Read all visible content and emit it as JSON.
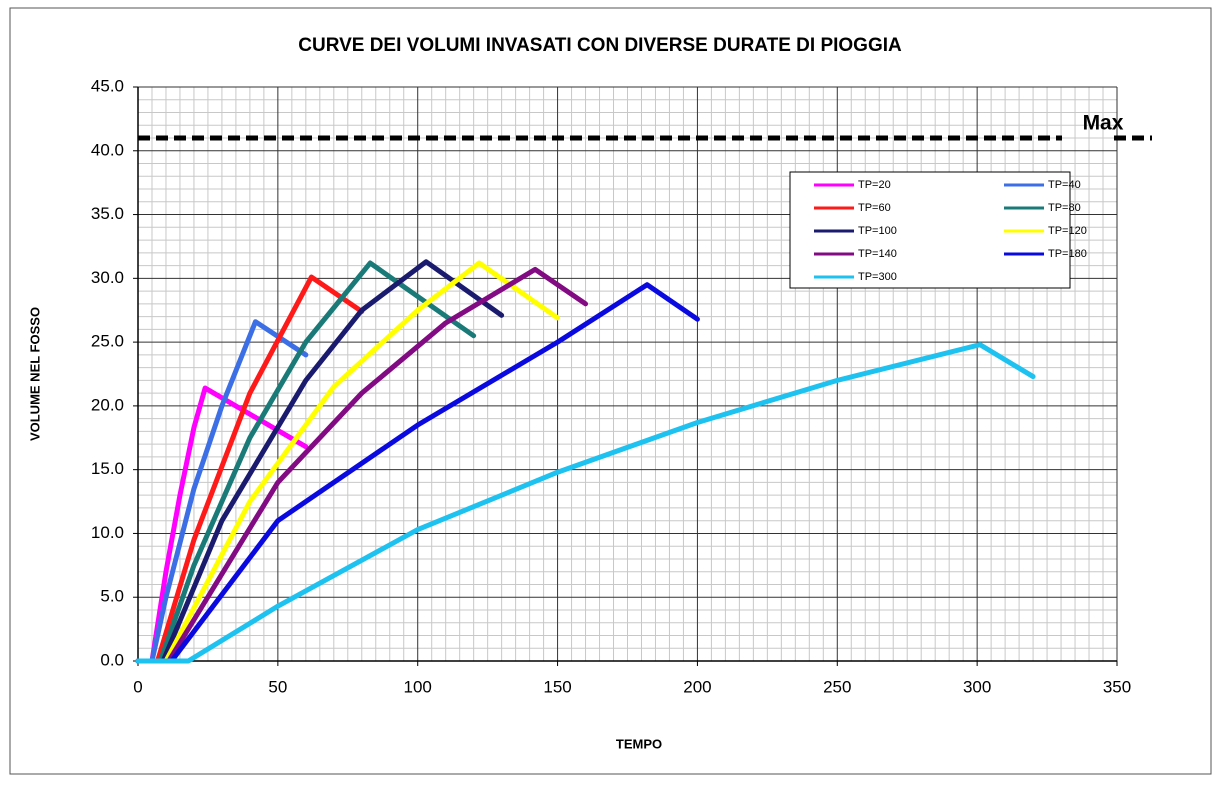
{
  "chart_data": {
    "type": "line",
    "title": "CURVE DEI VOLUMI INVASATI CON DIVERSE DURATE DI PIOGGIA",
    "xlabel": "TEMPO",
    "ylabel": "VOLUME NEL FOSSO",
    "xlim": [
      0,
      350
    ],
    "ylim": [
      0,
      45
    ],
    "xticks": [
      0,
      50,
      100,
      150,
      200,
      250,
      300,
      350
    ],
    "yticks": [
      {
        "value": 0,
        "label": "0.0"
      },
      {
        "value": 5,
        "label": "5.0"
      },
      {
        "value": 10,
        "label": "10.0"
      },
      {
        "value": 15,
        "label": "15.0"
      },
      {
        "value": 20,
        "label": "20.0"
      },
      {
        "value": 25,
        "label": "25.0"
      },
      {
        "value": 30,
        "label": "30.0"
      },
      {
        "value": 35,
        "label": "35.0"
      },
      {
        "value": 40,
        "label": "40.0"
      },
      {
        "value": 45,
        "label": "45.0"
      }
    ],
    "grid": true,
    "legend": "upper right",
    "annotations": [
      {
        "text": "Max",
        "y": 41
      }
    ],
    "series": [
      {
        "name": "TP=20",
        "color": "#ff00ff",
        "x": [
          0,
          5,
          10,
          15,
          20,
          24,
          60
        ],
        "values": [
          0,
          0,
          7,
          13,
          18.3,
          21.4,
          16.8
        ]
      },
      {
        "name": "TP=40",
        "color": "#3c6fe6",
        "x": [
          0,
          5,
          10,
          20,
          30,
          42,
          60
        ],
        "values": [
          0,
          0,
          5,
          13.5,
          20,
          26.6,
          24
        ]
      },
      {
        "name": "TP=60",
        "color": "#ff1a1a",
        "x": [
          0,
          7,
          20,
          40,
          62,
          80
        ],
        "values": [
          0,
          0,
          9.5,
          21,
          30.1,
          27.4
        ]
      },
      {
        "name": "TP=80",
        "color": "#1a7a78",
        "x": [
          0,
          8,
          20,
          40,
          60,
          83,
          120
        ],
        "values": [
          0,
          0,
          7.5,
          17.5,
          25,
          31.2,
          25.5
        ]
      },
      {
        "name": "TP=100",
        "color": "#1a1a6e",
        "x": [
          0,
          9,
          30,
          60,
          80,
          103,
          130
        ],
        "values": [
          0,
          0,
          11,
          22,
          27.5,
          31.3,
          27.1
        ]
      },
      {
        "name": "TP=120",
        "color": "#ffff00",
        "x": [
          0,
          10,
          40,
          70,
          100,
          122,
          150
        ],
        "values": [
          0,
          0,
          12.5,
          21.5,
          27.5,
          31.2,
          26.9
        ]
      },
      {
        "name": "TP=140",
        "color": "#820a82",
        "x": [
          0,
          11,
          50,
          80,
          110,
          142,
          160
        ],
        "values": [
          0,
          0,
          14,
          21,
          26.5,
          30.7,
          28
        ]
      },
      {
        "name": "TP=180",
        "color": "#0a0ae0",
        "x": [
          0,
          12,
          50,
          100,
          150,
          182,
          200
        ],
        "values": [
          0,
          0,
          11,
          18.5,
          25,
          29.5,
          26.8
        ]
      },
      {
        "name": "TP=300",
        "color": "#1ec2f0",
        "x": [
          0,
          18,
          50,
          100,
          150,
          200,
          250,
          301,
          320
        ],
        "values": [
          0,
          0,
          4.3,
          10.3,
          14.8,
          18.7,
          22,
          24.8,
          22.3
        ]
      }
    ]
  }
}
